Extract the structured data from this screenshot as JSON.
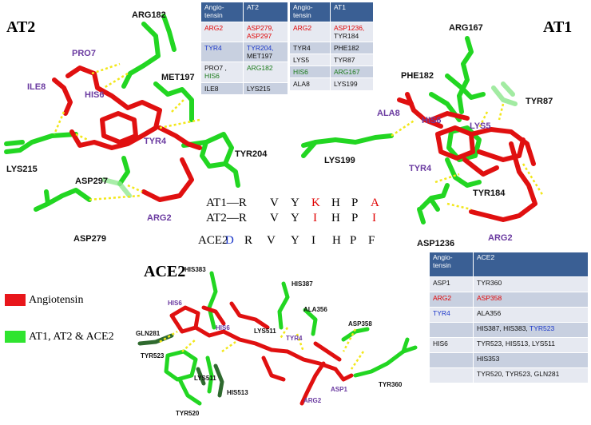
{
  "panels": {
    "at2": "AT2",
    "at1": "AT1",
    "ace2": "ACE2"
  },
  "at2_labels": {
    "arg182": "ARG182",
    "pro7": "PRO7",
    "ile8": "ILE8",
    "his6": "HIS6",
    "met197": "MET197",
    "tyr4": "TYR4",
    "tyr204": "TYR204",
    "lys215": "LYS215",
    "asp297": "ASP297",
    "arg2": "ARG2",
    "asp279": "ASP279"
  },
  "at1_labels": {
    "arg167": "ARG167",
    "phe182": "PHE182",
    "tyr87": "TYR87",
    "ala8": "ALA8",
    "his6": "HIS6",
    "lys5": "LYS5",
    "lys199": "LYS199",
    "tyr4": "TYR4",
    "tyr184": "TYR184",
    "asp1236": "ASP1236",
    "arg2": "ARG2"
  },
  "ace2_labels": {
    "his383": "HIS383",
    "his387": "HIS387",
    "his6a": "HIS6",
    "his6b": "HIS6",
    "ala356": "ALA356",
    "lys511": "LYS511",
    "gln281": "GLN281",
    "asp358": "ASP358",
    "tyr4": "TYR4",
    "tyr523": "TYR523",
    "lys511b": "LYS511",
    "his513": "HIS513",
    "asp1": "ASP1",
    "tyr360": "TYR360",
    "arg2": "ARG2",
    "tyr520": "TYR520"
  },
  "at2_table": {
    "headers": [
      "Angio-tensin",
      "AT2"
    ],
    "rows": [
      [
        {
          "t": "ARG2",
          "c": "red"
        },
        {
          "t": "ASP279, ASP297",
          "c": "red"
        }
      ],
      [
        {
          "t": "TYR4",
          "c": "blu"
        },
        {
          "t": "TYR204,",
          "c": "blu",
          "t2": " MET197",
          "c2": ""
        }
      ],
      [
        {
          "t": "PRO7 , ",
          "c": "",
          "t2": "HIS6",
          "c2": "grn"
        },
        {
          "t": "ARG182",
          "c": "grn"
        }
      ],
      [
        {
          "t": "ILE8",
          "c": ""
        },
        {
          "t": "LYS215",
          "c": ""
        }
      ]
    ]
  },
  "at1_table": {
    "headers": [
      "Angio-tensin",
      "AT1"
    ],
    "rows": [
      [
        {
          "t": "ARG2",
          "c": "red"
        },
        {
          "t": "ASP1236,",
          "c": "red",
          "t2": " TYR184",
          "c2": ""
        }
      ],
      [
        {
          "t": "TYR4",
          "c": ""
        },
        {
          "t": "PHE182",
          "c": ""
        }
      ],
      [
        {
          "t": "LYS5",
          "c": ""
        },
        {
          "t": "TYR87",
          "c": ""
        }
      ],
      [
        {
          "t": "HIS6",
          "c": "grn"
        },
        {
          "t": "ARG167",
          "c": "grn"
        }
      ],
      [
        {
          "t": "ALA8",
          "c": ""
        },
        {
          "t": "LYS199",
          "c": ""
        }
      ]
    ]
  },
  "ace2_table": {
    "headers": [
      "Angio-tensin",
      "ACE2"
    ],
    "rows": [
      [
        "ASP1",
        "",
        "TYR360",
        ""
      ],
      [
        "ARG2",
        "red",
        "ASP358",
        "red"
      ],
      [
        "TYR4",
        "blu",
        "ALA356",
        ""
      ],
      [
        "HIS6",
        "",
        "HIS387, HIS383, ",
        "",
        "TYR523",
        "blu"
      ],
      [
        "",
        "",
        "TYR523, HIS513, LYS511",
        ""
      ],
      [
        "",
        "",
        "HIS353",
        ""
      ],
      [
        "",
        "",
        "TYR520, TYR523, GLN281",
        ""
      ]
    ]
  },
  "sequences": {
    "at1": [
      "AT1—R",
      "V",
      "Y",
      "K",
      "H",
      "P",
      "A"
    ],
    "at2": [
      "AT2—R",
      "V",
      "Y",
      "I",
      "H",
      "P",
      "I"
    ],
    "ace2": [
      "ACE2",
      "-",
      "D",
      "R",
      "V",
      "Y",
      "I",
      "H",
      "P",
      "F"
    ]
  },
  "legend": {
    "items": [
      {
        "label": "Angiotensin",
        "color": "#e8161b"
      },
      {
        "label": "AT1, AT2 & ACE2",
        "color": "#2fe42f"
      }
    ]
  },
  "colors": {
    "angiotensin": "#e01010",
    "receptor": "#22d622",
    "receptor_dark": "#2f6a2f",
    "hbond": "#f2e71a",
    "header": "#3a5f94"
  }
}
